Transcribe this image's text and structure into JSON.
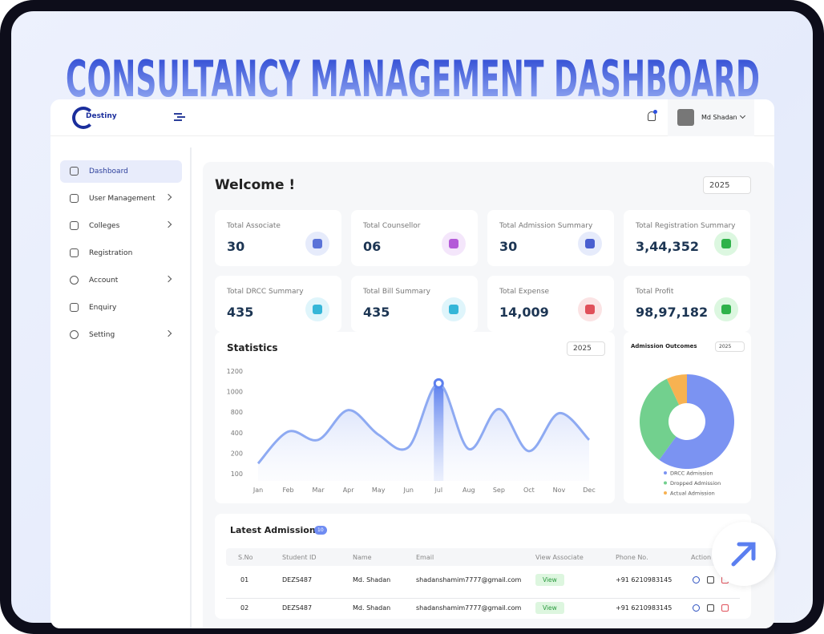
{
  "title": "Consultancy Management Dashboard",
  "header": {
    "logo": "Destiny",
    "user": "Md Shadan"
  },
  "sidebar": [
    "Dashboard",
    "User Management",
    "Colleges",
    "Registration",
    "Account",
    "Enquiry",
    "Setting"
  ],
  "welcome": "Welcome !",
  "year": "2025",
  "cards": [
    {
      "label": "Total Associate",
      "value": "30",
      "color": "#5b73d8",
      "bg": "#e6ebfb"
    },
    {
      "label": "Total Counsellor",
      "value": "06",
      "color": "#b45ad8",
      "bg": "#f4e6fb"
    },
    {
      "label": "Total Admission Summary",
      "value": "30",
      "color": "#4a5fd0",
      "bg": "#e6ebfb"
    },
    {
      "label": "Total Registration Summary",
      "value": "3,44,352",
      "color": "#2fb24a",
      "bg": "#dcf7e0"
    },
    {
      "label": "Total DRCC Summary",
      "value": "435",
      "color": "#35b6d8",
      "bg": "#dff5fb"
    },
    {
      "label": "Total Bill Summary",
      "value": "435",
      "color": "#35b6d8",
      "bg": "#dff5fb"
    },
    {
      "label": "Total Expense",
      "value": "14,009",
      "color": "#e0505a",
      "bg": "#fbe3e4"
    },
    {
      "label": "Total Profit",
      "value": "98,97,182",
      "color": "#2fb24a",
      "bg": "#dcf7e0"
    }
  ],
  "statistics": {
    "type": "line",
    "title": "Statistics",
    "year": "2025",
    "categories": [
      "Jan",
      "Feb",
      "Mar",
      "Apr",
      "May",
      "Jun",
      "Jul",
      "Aug",
      "Sep",
      "Oct",
      "Nov",
      "Dec"
    ],
    "values": [
      150,
      420,
      330,
      820,
      380,
      260,
      1080,
      240,
      830,
      220,
      780,
      330
    ],
    "yticks": [
      100,
      200,
      400,
      800,
      1000,
      1200
    ],
    "color": "#8eaaf2"
  },
  "outcomes": {
    "type": "pie",
    "title": "Admission Outcomes",
    "year": "2025",
    "categories": [
      "DRCC Admission",
      "Dropped Admission",
      "Actual Admission"
    ],
    "values": [
      60,
      33,
      7
    ],
    "colors": [
      "#7b93f2",
      "#72d08e",
      "#f7b251"
    ]
  },
  "table": {
    "title": "Latest Admissions",
    "count": "10",
    "columns": [
      "S.No",
      "Student ID",
      "Name",
      "Email",
      "View Associate",
      "Phone No.",
      "Action"
    ],
    "rows": [
      [
        "01",
        "DEZS487",
        "Md. Shadan",
        "shadanshamim7777@gmail.com",
        "View",
        "+91 6210983145"
      ],
      [
        "02",
        "DEZS487",
        "Md. Shadan",
        "shadanshamim7777@gmail.com",
        "View",
        "+91 6210983145"
      ]
    ]
  }
}
